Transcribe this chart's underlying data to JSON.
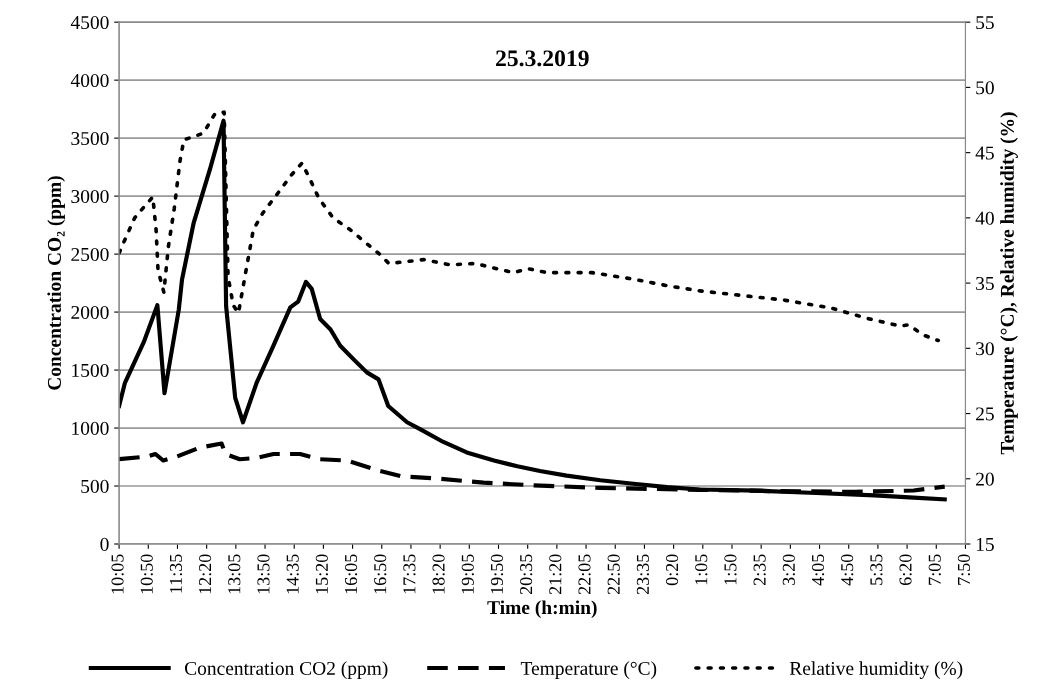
{
  "chart_data": {
    "type": "line",
    "title": "25.3.2019",
    "xlabel": "Time (h:min)",
    "ylabel": "Concentration CO₂ (ppm)",
    "y2label": "Temperature (°C), Relative humidity (%)",
    "xlim": [
      "2019-03-25T10:05",
      "2019-03-26T07:50"
    ],
    "xticks": [
      {
        "value": "2019-03-25T10:05",
        "label": "10:05"
      },
      {
        "value": "2019-03-25T10:50",
        "label": "10:50"
      },
      {
        "value": "2019-03-25T11:35",
        "label": "11:35"
      },
      {
        "value": "2019-03-25T12:20",
        "label": "12:20"
      },
      {
        "value": "2019-03-25T13:05",
        "label": "13:05"
      },
      {
        "value": "2019-03-25T13:50",
        "label": "13:50"
      },
      {
        "value": "2019-03-25T14:35",
        "label": "14:35"
      },
      {
        "value": "2019-03-25T15:20",
        "label": "15:20"
      },
      {
        "value": "2019-03-25T16:05",
        "label": "16:05"
      },
      {
        "value": "2019-03-25T16:50",
        "label": "16:50"
      },
      {
        "value": "2019-03-25T17:35",
        "label": "17:35"
      },
      {
        "value": "2019-03-25T18:20",
        "label": "18:20"
      },
      {
        "value": "2019-03-25T19:05",
        "label": "19:05"
      },
      {
        "value": "2019-03-25T19:50",
        "label": "19:50"
      },
      {
        "value": "2019-03-25T20:35",
        "label": "20:35"
      },
      {
        "value": "2019-03-25T21:20",
        "label": "21:20"
      },
      {
        "value": "2019-03-25T22:05",
        "label": "22:05"
      },
      {
        "value": "2019-03-25T22:50",
        "label": "22:50"
      },
      {
        "value": "2019-03-25T23:35",
        "label": "23:35"
      },
      {
        "value": "2019-03-26T00:20",
        "label": "0:20"
      },
      {
        "value": "2019-03-26T01:05",
        "label": "1:05"
      },
      {
        "value": "2019-03-26T01:50",
        "label": "1:50"
      },
      {
        "value": "2019-03-26T02:35",
        "label": "2:35"
      },
      {
        "value": "2019-03-26T03:20",
        "label": "3:20"
      },
      {
        "value": "2019-03-26T04:05",
        "label": "4:05"
      },
      {
        "value": "2019-03-26T04:50",
        "label": "4:50"
      },
      {
        "value": "2019-03-26T05:35",
        "label": "5:35"
      },
      {
        "value": "2019-03-26T06:20",
        "label": "6:20"
      },
      {
        "value": "2019-03-26T07:05",
        "label": "7:05"
      },
      {
        "value": "2019-03-26T07:50",
        "label": "7:50"
      }
    ],
    "ylim": [
      0,
      4500
    ],
    "yticks": [
      0,
      500,
      1000,
      1500,
      2000,
      2500,
      3000,
      3500,
      4000,
      4500
    ],
    "y2lim": [
      15,
      55
    ],
    "y2ticks": [
      15,
      20,
      25,
      30,
      35,
      40,
      45,
      50,
      55
    ],
    "grid": "y",
    "legend": "bottom",
    "series": [
      {
        "name": "Concentration CO2 (ppm)",
        "color": "#000000",
        "line_style": "solid",
        "x": [
          "2019-03-25T10:05",
          "2019-03-25T10:14",
          "2019-03-25T10:43",
          "2019-03-25T11:04",
          "2019-03-25T11:15",
          "2019-03-25T11:37",
          "2019-03-25T11:42",
          "2019-03-25T12:00",
          "2019-03-25T12:25",
          "2019-03-25T12:46",
          "2019-03-25T12:50",
          "2019-03-25T13:04",
          "2019-03-25T13:16",
          "2019-03-25T13:37",
          "2019-03-25T14:03",
          "2019-03-25T14:29",
          "2019-03-25T14:41",
          "2019-03-25T14:53",
          "2019-03-25T15:02",
          "2019-03-25T15:15",
          "2019-03-25T15:31",
          "2019-03-25T15:46",
          "2019-03-25T16:07",
          "2019-03-25T16:27",
          "2019-03-25T16:45",
          "2019-03-25T17:00",
          "2019-03-25T17:29",
          "2019-03-25T17:49",
          "2019-03-25T18:25",
          "2019-03-25T19:01",
          "2019-03-25T19:43",
          "2019-03-25T20:19",
          "2019-03-25T20:54",
          "2019-03-25T21:35",
          "2019-03-25T22:27",
          "2019-03-25T23:18",
          "2019-03-26T00:10",
          "2019-03-26T01:00",
          "2019-03-26T02:30",
          "2019-03-26T04:00",
          "2019-03-26T05:30",
          "2019-03-26T06:30",
          "2019-03-26T07:18"
        ],
        "values": [
          1190,
          1390,
          1740,
          2060,
          1300,
          2020,
          2280,
          2770,
          3230,
          3650,
          2050,
          1260,
          1050,
          1390,
          1710,
          2040,
          2090,
          2260,
          2200,
          1940,
          1850,
          1710,
          1590,
          1480,
          1420,
          1190,
          1050,
          990,
          880,
          790,
          720,
          670,
          630,
          590,
          550,
          520,
          490,
          470,
          460,
          440,
          420,
          400,
          385
        ]
      },
      {
        "name": "Temperature (°C)",
        "color": "#000000",
        "line_style": "dashed",
        "axis": "y2",
        "x": [
          "2019-03-25T10:05",
          "2019-03-25T10:48",
          "2019-03-25T11:01",
          "2019-03-25T11:13",
          "2019-03-25T11:34",
          "2019-03-25T12:10",
          "2019-03-25T12:43",
          "2019-03-25T12:49",
          "2019-03-25T13:11",
          "2019-03-25T13:37",
          "2019-03-25T14:03",
          "2019-03-25T14:44",
          "2019-03-25T15:15",
          "2019-03-25T15:56",
          "2019-03-25T16:47",
          "2019-03-25T17:19",
          "2019-03-25T18:20",
          "2019-03-25T19:27",
          "2019-03-25T20:44",
          "2019-03-25T22:27",
          "2019-03-26T00:10",
          "2019-03-26T01:00",
          "2019-03-26T03:00",
          "2019-03-26T05:00",
          "2019-03-26T06:30",
          "2019-03-26T07:18"
        ],
        "values": [
          21.5,
          21.7,
          21.9,
          21.4,
          21.7,
          22.4,
          22.7,
          21.9,
          21.5,
          21.6,
          21.9,
          21.9,
          21.5,
          21.4,
          20.6,
          20.2,
          20.0,
          19.7,
          19.5,
          19.3,
          19.2,
          19.15,
          19.05,
          19.0,
          19.1,
          19.4
        ]
      },
      {
        "name": "Relative humidity (%)",
        "color": "#000000",
        "line_style": "dotted",
        "axis": "y2",
        "x": [
          "2019-03-25T10:05",
          "2019-03-25T10:11",
          "2019-03-25T10:29",
          "2019-03-25T10:48",
          "2019-03-25T10:57",
          "2019-03-25T11:02",
          "2019-03-25T11:05",
          "2019-03-25T11:14",
          "2019-03-25T11:21",
          "2019-03-25T11:30",
          "2019-03-25T11:39",
          "2019-03-25T11:45",
          "2019-03-25T11:59",
          "2019-03-25T12:15",
          "2019-03-25T12:33",
          "2019-03-25T12:47",
          "2019-03-25T12:53",
          "2019-03-25T13:01",
          "2019-03-25T13:09",
          "2019-03-25T13:19",
          "2019-03-25T13:32",
          "2019-03-25T13:47",
          "2019-03-25T14:13",
          "2019-03-25T14:31",
          "2019-03-25T14:47",
          "2019-03-25T14:59",
          "2019-03-25T15:13",
          "2019-03-25T15:35",
          "2019-03-25T16:01",
          "2019-03-25T16:47",
          "2019-03-25T17:01",
          "2019-03-25T17:55",
          "2019-03-25T18:35",
          "2019-03-25T19:14",
          "2019-03-25T20:13",
          "2019-03-25T20:36",
          "2019-03-25T21:05",
          "2019-03-25T22:14",
          "2019-03-25T23:18",
          "2019-03-26T00:10",
          "2019-03-26T01:01",
          "2019-03-26T03:10",
          "2019-03-26T04:22",
          "2019-03-26T05:18",
          "2019-03-26T06:10",
          "2019-03-26T06:22",
          "2019-03-26T06:46",
          "2019-03-26T07:08"
        ],
        "values": [
          37.3,
          38.0,
          40.0,
          41.1,
          41.6,
          39.1,
          36.0,
          34.3,
          37.8,
          40.7,
          44.4,
          46.0,
          46.2,
          46.5,
          48.0,
          48.1,
          35.5,
          33.3,
          32.7,
          35.5,
          39.1,
          40.4,
          42.1,
          43.3,
          44.2,
          43.0,
          41.5,
          40.0,
          39.1,
          37.2,
          36.5,
          36.8,
          36.4,
          36.5,
          35.8,
          36.1,
          35.8,
          35.8,
          35.3,
          34.8,
          34.4,
          33.7,
          33.1,
          32.3,
          31.7,
          31.8,
          31.0,
          30.6
        ]
      }
    ]
  }
}
